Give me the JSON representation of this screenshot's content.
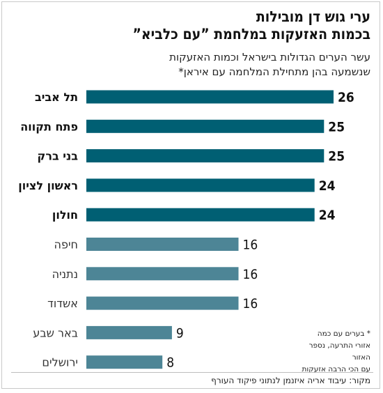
{
  "title_lines": [
    "ערי גוש דן מובילות",
    "בכמות האזעקות במלחמת ”עם כלביא”"
  ],
  "subtitle_lines": [
    "עשר הערים הגדולות בישראל וכמות האזעקות",
    "שנשמעה בהן מתחילת המלחמה עם איראן*"
  ],
  "footnote_lines": [
    "* בערים עם כמה",
    "אזורי התרעה, נספר האזור",
    "עם הכי הרבה אזעקות"
  ],
  "source": "מקור: עיבוד אריה איזנמן לנתוני פיקוד העורף",
  "colors": {
    "highlight": "#005f73",
    "regular": "#4d8596"
  },
  "chart_data": {
    "type": "bar",
    "orientation": "horizontal",
    "categories": [
      "תל אביב",
      "פתח תקווה",
      "בני ברק",
      "ראשון לציון",
      "חולון",
      "חיפה",
      "נתניה",
      "אשדוד",
      "באר שבע",
      "ירושלים"
    ],
    "values": [
      26,
      25,
      25,
      24,
      24,
      16,
      16,
      16,
      9,
      8
    ],
    "highlighted": [
      true,
      true,
      true,
      true,
      true,
      false,
      false,
      false,
      false,
      false
    ],
    "xlim": [
      0,
      26
    ],
    "title": "",
    "xlabel": "",
    "ylabel": ""
  }
}
